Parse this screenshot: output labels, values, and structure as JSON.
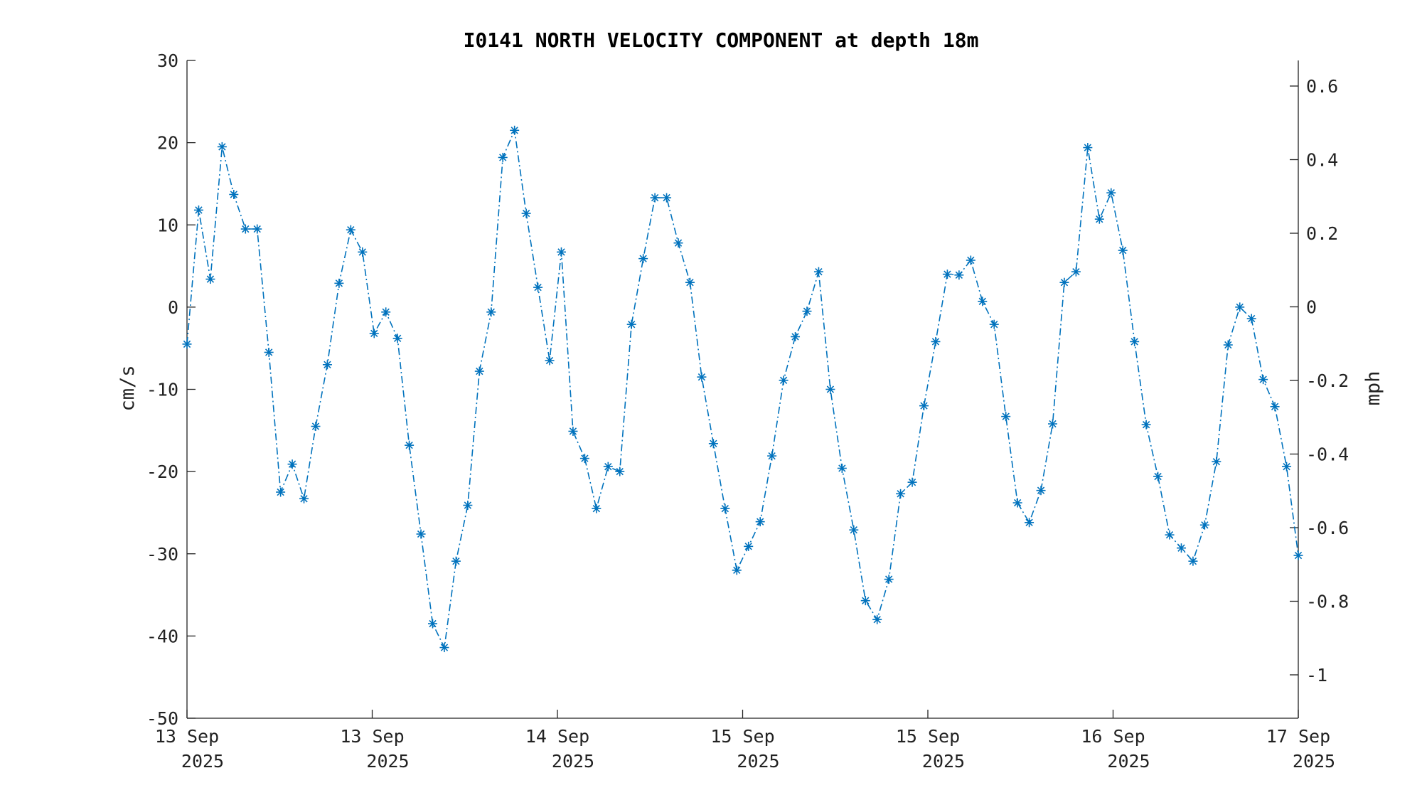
{
  "chart_data": {
    "type": "line",
    "title": "I0141 NORTH VELOCITY COMPONENT at depth 18m",
    "ylabel": "cm/s",
    "ylabel_right": "mph",
    "ylim": [
      -50,
      30
    ],
    "yticks": [
      "30",
      "20",
      "10",
      "0",
      "-10",
      "-20",
      "-30",
      "-40",
      "-50"
    ],
    "yticks_right": [
      "0.6",
      "0.4",
      "0.2",
      "0",
      "-0.2",
      "-0.4",
      "-0.6",
      "-0.8",
      "-1"
    ],
    "x_ticks": [
      {
        "day": "13 Sep",
        "year": "2025"
      },
      {
        "day": "13 Sep",
        "year": "2025"
      },
      {
        "day": "14 Sep",
        "year": "2025"
      },
      {
        "day": "15 Sep",
        "year": "2025"
      },
      {
        "day": "15 Sep",
        "year": "2025"
      },
      {
        "day": "16 Sep",
        "year": "2025"
      },
      {
        "day": "17 Sep",
        "year": "2025"
      }
    ],
    "grid": false,
    "colors": {
      "series": "#0072BD",
      "axis": "#222222"
    },
    "series": [
      {
        "marker": "asterisk",
        "line_style": "dash-dot",
        "values": [
          -4.5,
          11.8,
          3.4,
          19.5,
          13.7,
          9.5,
          9.5,
          -5.5,
          -22.5,
          -19.1,
          -23.3,
          -14.5,
          -7.0,
          2.9,
          9.4,
          6.7,
          -3.2,
          -0.6,
          -3.8,
          -16.8,
          -27.6,
          -38.5,
          -41.4,
          -30.9,
          -24.1,
          -7.8,
          -0.6,
          18.2,
          21.5,
          11.4,
          2.4,
          -6.5,
          6.7,
          -15.1,
          -18.4,
          -24.5,
          -19.4,
          -20.0,
          -2.1,
          5.9,
          13.3,
          13.3,
          7.8,
          3.0,
          -8.5,
          -16.6,
          -24.5,
          -32.0,
          -29.1,
          -26.1,
          -18.1,
          -8.9,
          -3.6,
          -0.5,
          4.3,
          -10.0,
          -19.6,
          -27.1,
          -35.7,
          -38.0,
          -33.1,
          -22.7,
          -21.3,
          -12.0,
          -4.2,
          4.0,
          3.9,
          5.7,
          0.7,
          -2.1,
          -13.3,
          -23.8,
          -26.2,
          -22.3,
          -14.2,
          3.0,
          4.3,
          19.4,
          10.7,
          13.9,
          6.9,
          -4.2,
          -14.3,
          -20.6,
          -27.7,
          -29.3,
          -30.9,
          -26.5,
          -18.8,
          -4.6,
          0.0,
          -1.4,
          -8.8,
          -12.1,
          -19.4,
          -30.2
        ]
      }
    ]
  }
}
